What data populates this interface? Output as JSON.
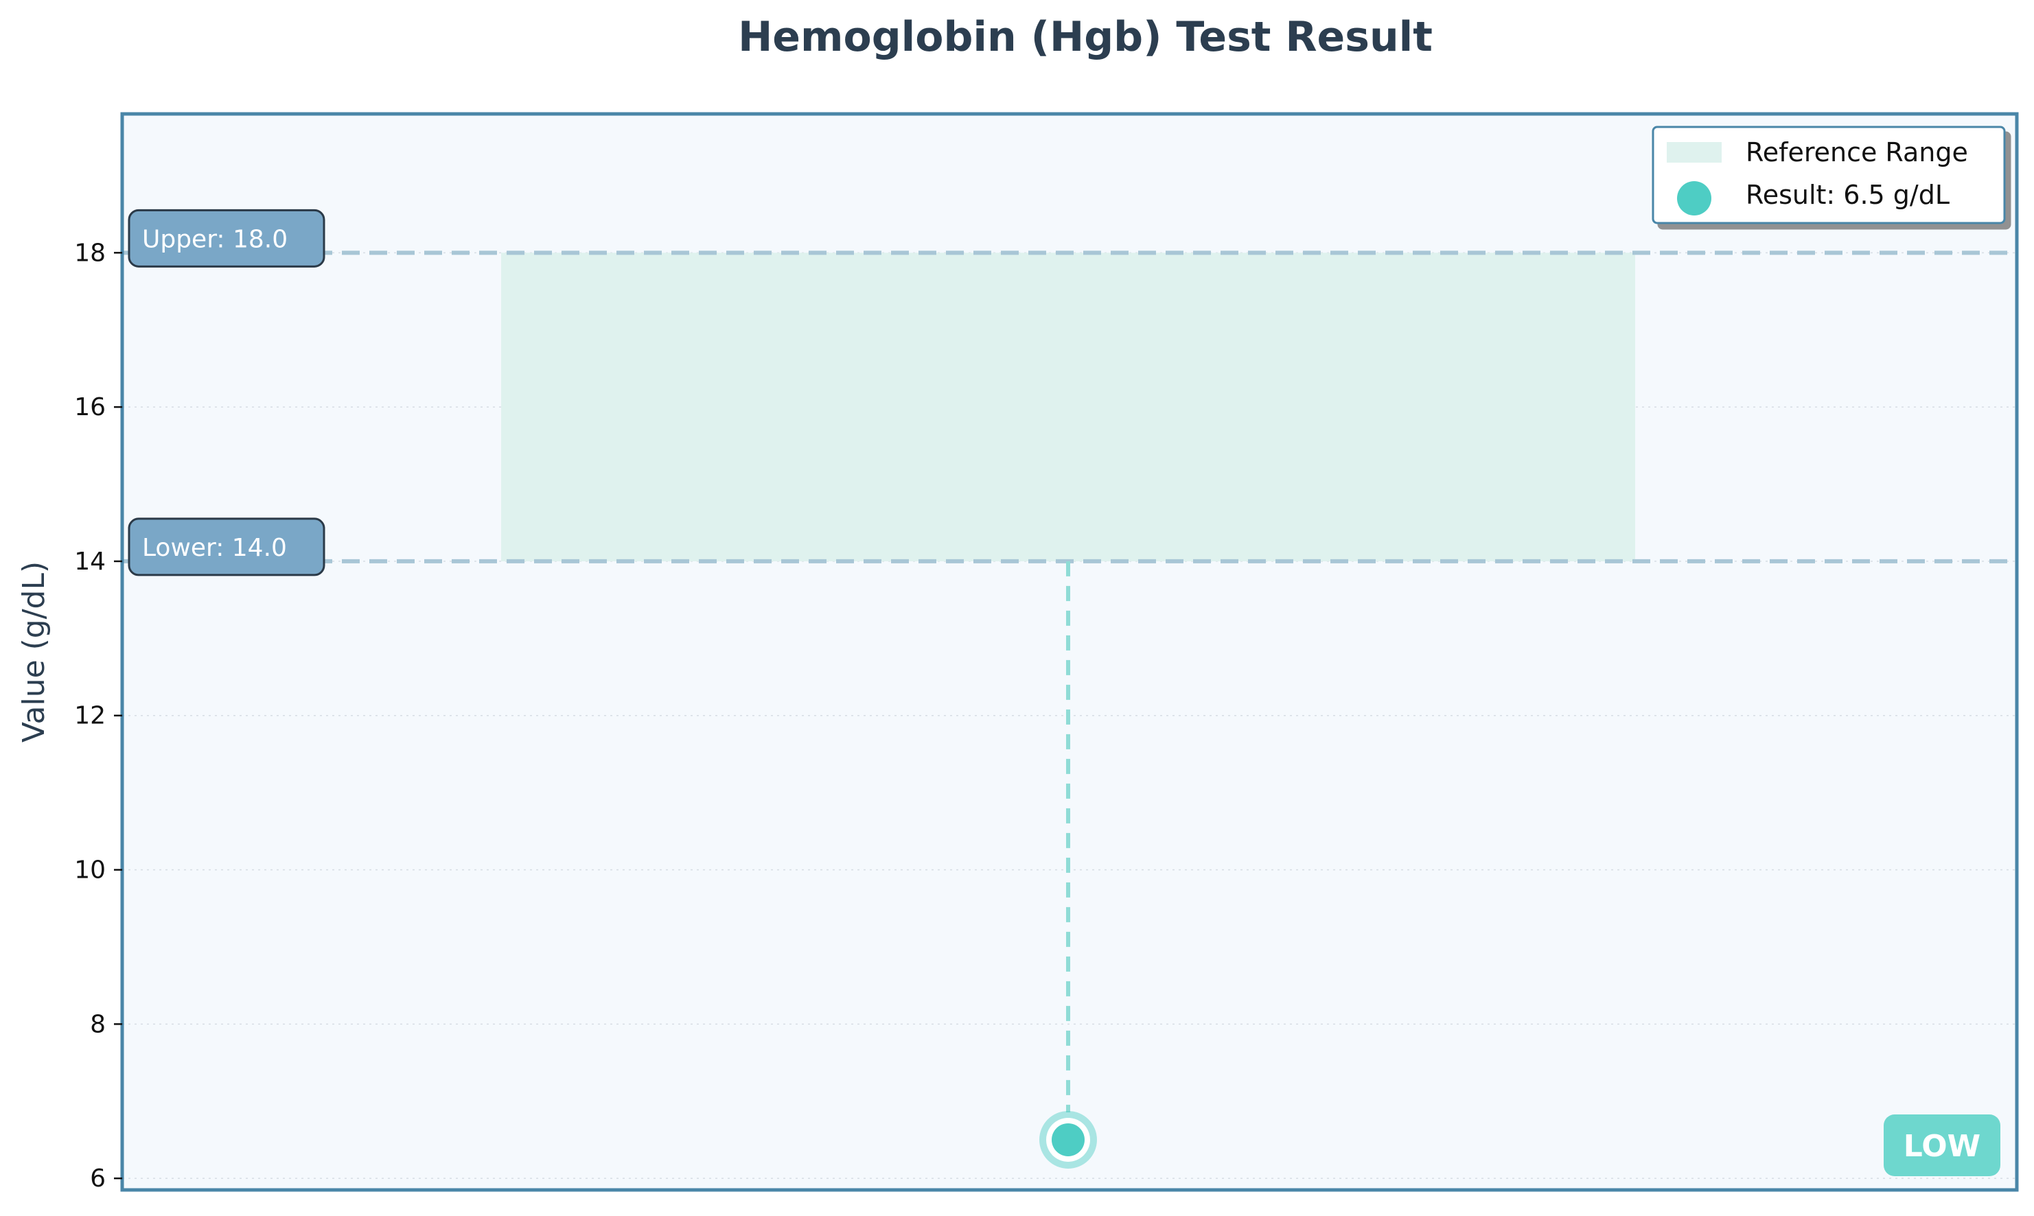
{
  "chart_data": {
    "type": "scatter",
    "title": "Hemoglobin (Hgb) Test Result",
    "xlabel": "",
    "ylabel": "Value (g/dL)",
    "ylim": [
      5.85,
      19.8
    ],
    "yticks": [
      6,
      8,
      10,
      12,
      14,
      16,
      18
    ],
    "grid": true,
    "legend_position": "top-right",
    "reference_range": {
      "lower": 14.0,
      "upper": 18.0,
      "legend": "Reference Range"
    },
    "bound_labels": {
      "upper": "Upper: 18.0",
      "lower": "Lower: 14.0"
    },
    "series": [
      {
        "name": "Result: 6.5 g/dL",
        "values": [
          6.5
        ]
      }
    ],
    "status": "LOW",
    "colors": {
      "result": "#4ecdc4",
      "reference_fill": "#dff2ee",
      "bound_line": "#a8c6d6",
      "label_box": "#7aa7c7",
      "frame": "#4a86a8",
      "plot_bg": "#f5f9fd",
      "title": "#2c3e50"
    }
  }
}
